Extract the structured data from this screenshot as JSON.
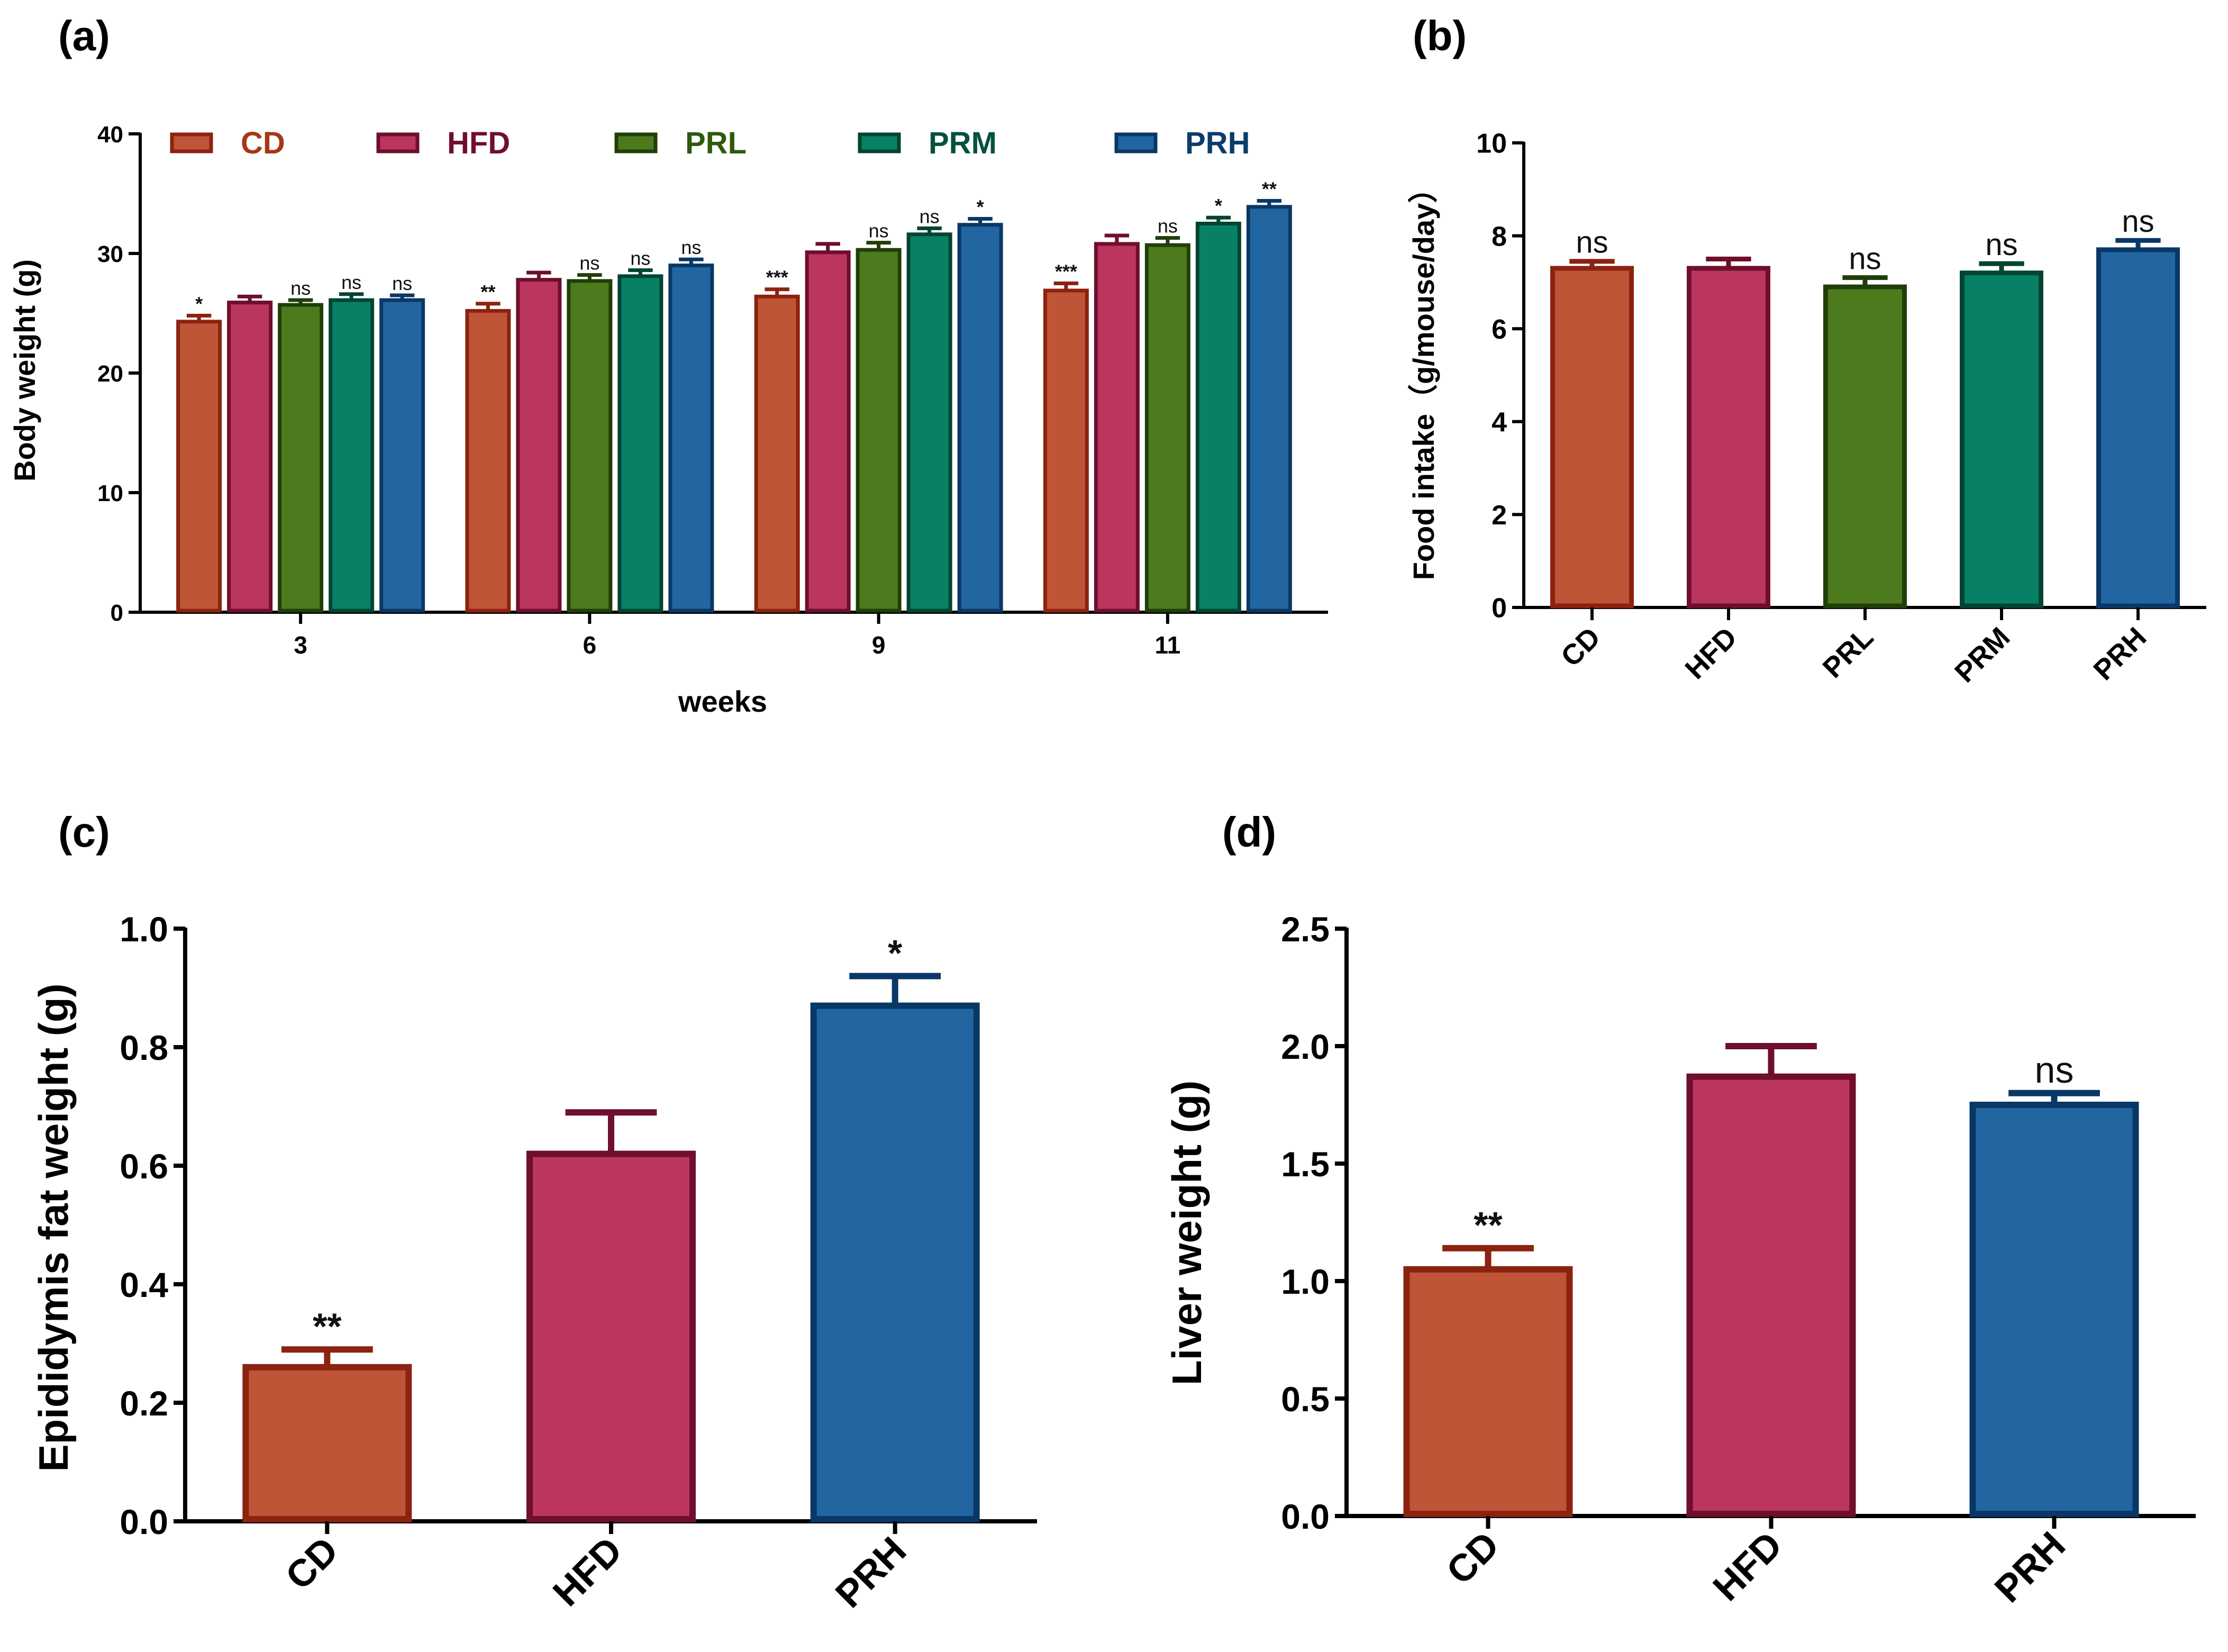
{
  "colors": {
    "CD": {
      "fill": "#bf5537",
      "stroke": "#8c2210"
    },
    "HFD": {
      "fill": "#ba365f",
      "stroke": "#6e0f2c"
    },
    "PRL": {
      "fill": "#4e7a1e",
      "stroke": "#203f08"
    },
    "PRM": {
      "fill": "#088065",
      "stroke": "#034432"
    },
    "PRH": {
      "fill": "#2266a1",
      "stroke": "#0a3866"
    },
    "legend_text": {
      "CD": "#a63714",
      "HFD": "#6e0f2c",
      "PRL": "#2e5a0c",
      "PRM": "#04513f",
      "PRH": "#0b3c6b"
    }
  },
  "chart_data": [
    {
      "id": "a",
      "panel_label": "(a)",
      "type": "bar",
      "title": "",
      "xlabel": "weeks",
      "ylabel": "Body weight (g)",
      "ylim": [
        0,
        40
      ],
      "yticks": [
        "0",
        "10",
        "20",
        "30",
        "40"
      ],
      "categories": [
        "3",
        "6",
        "9",
        "11"
      ],
      "legend": [
        "CD",
        "HFD",
        "PRL",
        "PRM",
        "PRH"
      ],
      "series": [
        {
          "name": "CD",
          "values": [
            24.3,
            25.2,
            26.4,
            26.9
          ],
          "errors": [
            0.5,
            0.6,
            0.6,
            0.6
          ],
          "annotations": [
            "*",
            "**",
            "***",
            "***"
          ]
        },
        {
          "name": "HFD",
          "values": [
            25.9,
            27.8,
            30.1,
            30.8
          ],
          "errors": [
            0.5,
            0.6,
            0.7,
            0.7
          ],
          "annotations": [
            "",
            "",
            "",
            ""
          ]
        },
        {
          "name": "PRL",
          "values": [
            25.7,
            27.7,
            30.3,
            30.7
          ],
          "errors": [
            0.4,
            0.5,
            0.6,
            0.6
          ],
          "annotations": [
            "ns",
            "ns",
            "ns",
            "ns"
          ]
        },
        {
          "name": "PRM",
          "values": [
            26.1,
            28.1,
            31.6,
            32.5
          ],
          "errors": [
            0.5,
            0.5,
            0.5,
            0.5
          ],
          "annotations": [
            "ns",
            "ns",
            "ns",
            "*"
          ]
        },
        {
          "name": "PRH",
          "values": [
            26.1,
            29.0,
            32.4,
            33.9
          ],
          "errors": [
            0.4,
            0.5,
            0.5,
            0.5
          ],
          "annotations": [
            "ns",
            "ns",
            "*",
            "**"
          ]
        }
      ]
    },
    {
      "id": "b",
      "panel_label": "(b)",
      "type": "bar",
      "title": "",
      "xlabel": "",
      "ylabel": "Food intake（g/mouse/day）",
      "ylim": [
        0,
        10
      ],
      "yticks": [
        "0",
        "2",
        "4",
        "6",
        "8",
        "10"
      ],
      "categories": [
        "CD",
        "HFD",
        "PRL",
        "PRM",
        "PRH"
      ],
      "values": [
        7.3,
        7.3,
        6.9,
        7.2,
        7.7
      ],
      "errors": [
        0.15,
        0.2,
        0.2,
        0.2,
        0.2
      ],
      "annotations": [
        "ns",
        "",
        "ns",
        "ns",
        "ns"
      ]
    },
    {
      "id": "c",
      "panel_label": "(c)",
      "type": "bar",
      "title": "",
      "xlabel": "",
      "ylabel": "Epididymis fat weight (g)",
      "ylim": [
        0,
        1.0
      ],
      "yticks": [
        "0.0",
        "0.2",
        "0.4",
        "0.6",
        "0.8",
        "1.0"
      ],
      "categories": [
        "CD",
        "HFD",
        "PRH"
      ],
      "values": [
        0.26,
        0.62,
        0.87
      ],
      "errors": [
        0.03,
        0.07,
        0.05
      ],
      "annotations": [
        "**",
        "",
        "*"
      ]
    },
    {
      "id": "d",
      "panel_label": "(d)",
      "type": "bar",
      "title": "",
      "xlabel": "",
      "ylabel": "Liver weight (g)",
      "ylim": [
        0,
        2.5
      ],
      "yticks": [
        "0.0",
        "0.5",
        "1.0",
        "1.5",
        "2.0",
        "2.5"
      ],
      "categories": [
        "CD",
        "HFD",
        "PRH"
      ],
      "values": [
        1.05,
        1.87,
        1.75
      ],
      "errors": [
        0.09,
        0.13,
        0.05
      ],
      "annotations": [
        "**",
        "",
        "ns"
      ]
    }
  ]
}
